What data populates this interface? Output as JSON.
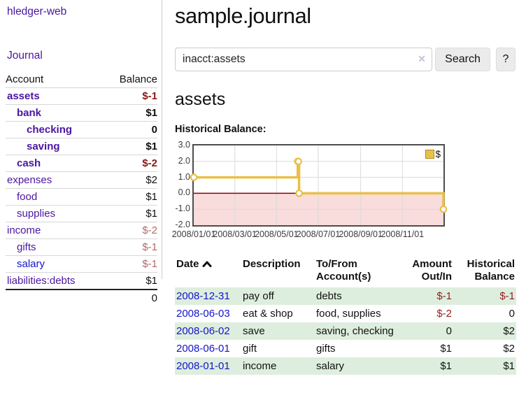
{
  "app": {
    "title": "hledger-web"
  },
  "sidebar": {
    "journal_link": "Journal",
    "accounts_table": {
      "headers": {
        "account": "Account",
        "balance": "Balance"
      },
      "rows": [
        {
          "name": "assets",
          "level": 0,
          "emph": true,
          "balance": "$-1",
          "neg": "strong",
          "link": "purple"
        },
        {
          "name": "bank",
          "level": 1,
          "emph": true,
          "balance": "$1",
          "neg": null,
          "link": "purple"
        },
        {
          "name": "checking",
          "level": 2,
          "emph": true,
          "balance": "0",
          "neg": null,
          "link": "purple"
        },
        {
          "name": "saving",
          "level": 2,
          "emph": true,
          "balance": "$1",
          "neg": null,
          "link": "purple"
        },
        {
          "name": "cash",
          "level": 1,
          "emph": true,
          "balance": "$-2",
          "neg": "strong",
          "link": "purple"
        },
        {
          "name": "expenses",
          "level": 0,
          "emph": false,
          "balance": "$2",
          "neg": null,
          "link": "purple"
        },
        {
          "name": "food",
          "level": 1,
          "emph": false,
          "balance": "$1",
          "neg": null,
          "link": "purple"
        },
        {
          "name": "supplies",
          "level": 1,
          "emph": false,
          "balance": "$1",
          "neg": null,
          "link": "purple"
        },
        {
          "name": "income",
          "level": 0,
          "emph": false,
          "balance": "$-2",
          "neg": "soft",
          "link": "purple"
        },
        {
          "name": "gifts",
          "level": 1,
          "emph": false,
          "balance": "$-1",
          "neg": "soft",
          "link": "purple"
        },
        {
          "name": "salary",
          "level": 1,
          "emph": false,
          "balance": "$-1",
          "neg": "soft",
          "link": "blue"
        },
        {
          "name": "liabilities:debts",
          "level": 0,
          "emph": false,
          "balance": "$1",
          "neg": null,
          "link": "purple"
        }
      ],
      "total": "0"
    }
  },
  "main": {
    "title": "sample.journal",
    "search": {
      "value": "inacct:assets",
      "clear_icon": "✕",
      "button": "Search",
      "help_button": "?"
    },
    "account_heading": "assets",
    "chart_label": "Historical Balance:"
  },
  "chart_data": {
    "type": "line",
    "title": "Historical Balance",
    "step": true,
    "legend": [
      {
        "label": "$",
        "color": "#E8C04A"
      }
    ],
    "series": [
      {
        "name": "$",
        "points": [
          [
            "2008-01-01",
            1
          ],
          [
            "2008-06-01",
            2
          ],
          [
            "2008-06-02",
            2
          ],
          [
            "2008-06-03",
            0
          ],
          [
            "2008-12-31",
            -1
          ]
        ]
      }
    ],
    "x_ticks": [
      "2008/01/01",
      "2008/03/01",
      "2008/05/01",
      "2008/07/01",
      "2008/09/01",
      "2008/11/01"
    ],
    "y_ticks": [
      3.0,
      2.0,
      1.0,
      0.0,
      -1.0,
      -2.0
    ],
    "xlim": [
      "2008-01-01",
      "2008-12-31"
    ],
    "ylim": [
      -2,
      3
    ],
    "colors": {
      "line": "#E8C04A",
      "marker_fill": "#FFFFFF",
      "grid": "#DADADA",
      "zero_line": "#8B0000",
      "negative_region": "#F9DCDC",
      "plot_border": "#4D4D4D"
    }
  },
  "register": {
    "headers": [
      {
        "key": "date",
        "lines": [
          "Date"
        ],
        "align": "left",
        "sort": "asc"
      },
      {
        "key": "desc",
        "lines": [
          "Description"
        ],
        "align": "left"
      },
      {
        "key": "acct",
        "lines": [
          "To/From",
          "Account(s)"
        ],
        "align": "left"
      },
      {
        "key": "amount",
        "lines": [
          "Amount",
          "Out/In"
        ],
        "align": "right"
      },
      {
        "key": "balance",
        "lines": [
          "Historical",
          "Balance"
        ],
        "align": "right"
      }
    ],
    "rows": [
      {
        "date": "2008-12-31",
        "description": "pay off",
        "accounts": "debts",
        "amount": "$-1",
        "balance": "$-1"
      },
      {
        "date": "2008-06-03",
        "description": "eat & shop",
        "accounts": "food, supplies",
        "amount": "$-2",
        "balance": "0"
      },
      {
        "date": "2008-06-02",
        "description": "save",
        "accounts": "saving, checking",
        "amount": "0",
        "balance": "$2"
      },
      {
        "date": "2008-06-01",
        "description": "gift",
        "accounts": "gifts",
        "amount": "$1",
        "balance": "$2"
      },
      {
        "date": "2008-01-01",
        "description": "income",
        "accounts": "salary",
        "amount": "$1",
        "balance": "$1"
      }
    ]
  }
}
